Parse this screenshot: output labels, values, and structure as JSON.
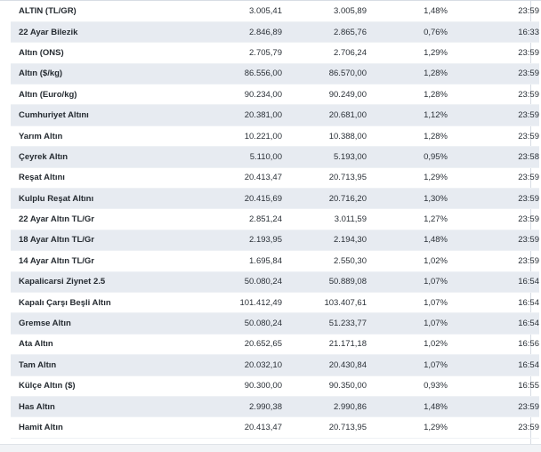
{
  "rows": [
    {
      "name": "ALTIN (TL/GR)",
      "buy": "3.005,41",
      "sell": "3.005,89",
      "change": "1,48%",
      "time": "23:59"
    },
    {
      "name": "22 Ayar Bilezik",
      "buy": "2.846,89",
      "sell": "2.865,76",
      "change": "0,76%",
      "time": "16:33"
    },
    {
      "name": "Altın (ONS)",
      "buy": "2.705,79",
      "sell": "2.706,24",
      "change": "1,29%",
      "time": "23:59"
    },
    {
      "name": "Altın ($/kg)",
      "buy": "86.556,00",
      "sell": "86.570,00",
      "change": "1,28%",
      "time": "23:59"
    },
    {
      "name": "Altın (Euro/kg)",
      "buy": "90.234,00",
      "sell": "90.249,00",
      "change": "1,28%",
      "time": "23:59"
    },
    {
      "name": "Cumhuriyet Altını",
      "buy": "20.381,00",
      "sell": "20.681,00",
      "change": "1,12%",
      "time": "23:59"
    },
    {
      "name": "Yarım Altın",
      "buy": "10.221,00",
      "sell": "10.388,00",
      "change": "1,28%",
      "time": "23:59"
    },
    {
      "name": "Çeyrek Altın",
      "buy": "5.110,00",
      "sell": "5.193,00",
      "change": "0,95%",
      "time": "23:58"
    },
    {
      "name": "Reşat Altını",
      "buy": "20.413,47",
      "sell": "20.713,95",
      "change": "1,29%",
      "time": "23:59"
    },
    {
      "name": "Kulplu Reşat Altını",
      "buy": "20.415,69",
      "sell": "20.716,20",
      "change": "1,30%",
      "time": "23:59"
    },
    {
      "name": "22 Ayar Altın TL/Gr",
      "buy": "2.851,24",
      "sell": "3.011,59",
      "change": "1,27%",
      "time": "23:59"
    },
    {
      "name": "18 Ayar Altın TL/Gr",
      "buy": "2.193,95",
      "sell": "2.194,30",
      "change": "1,48%",
      "time": "23:59"
    },
    {
      "name": "14 Ayar Altın TL/Gr",
      "buy": "1.695,84",
      "sell": "2.550,30",
      "change": "1,02%",
      "time": "23:59"
    },
    {
      "name": "Kapalicarsi Ziynet 2.5",
      "buy": "50.080,24",
      "sell": "50.889,08",
      "change": "1,07%",
      "time": "16:54"
    },
    {
      "name": "Kapalı Çarşı Beşli Altın",
      "buy": "101.412,49",
      "sell": "103.407,61",
      "change": "1,07%",
      "time": "16:54"
    },
    {
      "name": "Gremse Altın",
      "buy": "50.080,24",
      "sell": "51.233,77",
      "change": "1,07%",
      "time": "16:54"
    },
    {
      "name": "Ata Altın",
      "buy": "20.652,65",
      "sell": "21.171,18",
      "change": "1,02%",
      "time": "16:56"
    },
    {
      "name": "Tam Altın",
      "buy": "20.032,10",
      "sell": "20.430,84",
      "change": "1,07%",
      "time": "16:54"
    },
    {
      "name": "Külçe Altın ($)",
      "buy": "90.300,00",
      "sell": "90.350,00",
      "change": "0,93%",
      "time": "16:55"
    },
    {
      "name": "Has Altın",
      "buy": "2.990,38",
      "sell": "2.990,86",
      "change": "1,48%",
      "time": "23:59"
    },
    {
      "name": "Hamit Altın",
      "buy": "20.413,47",
      "sell": "20.713,95",
      "change": "1,29%",
      "time": "23:59"
    }
  ],
  "colors": {
    "row_alt": "#e7ebf1",
    "row_plain": "#ffffff",
    "text": "#2b3138",
    "border": "#d8dde4"
  }
}
